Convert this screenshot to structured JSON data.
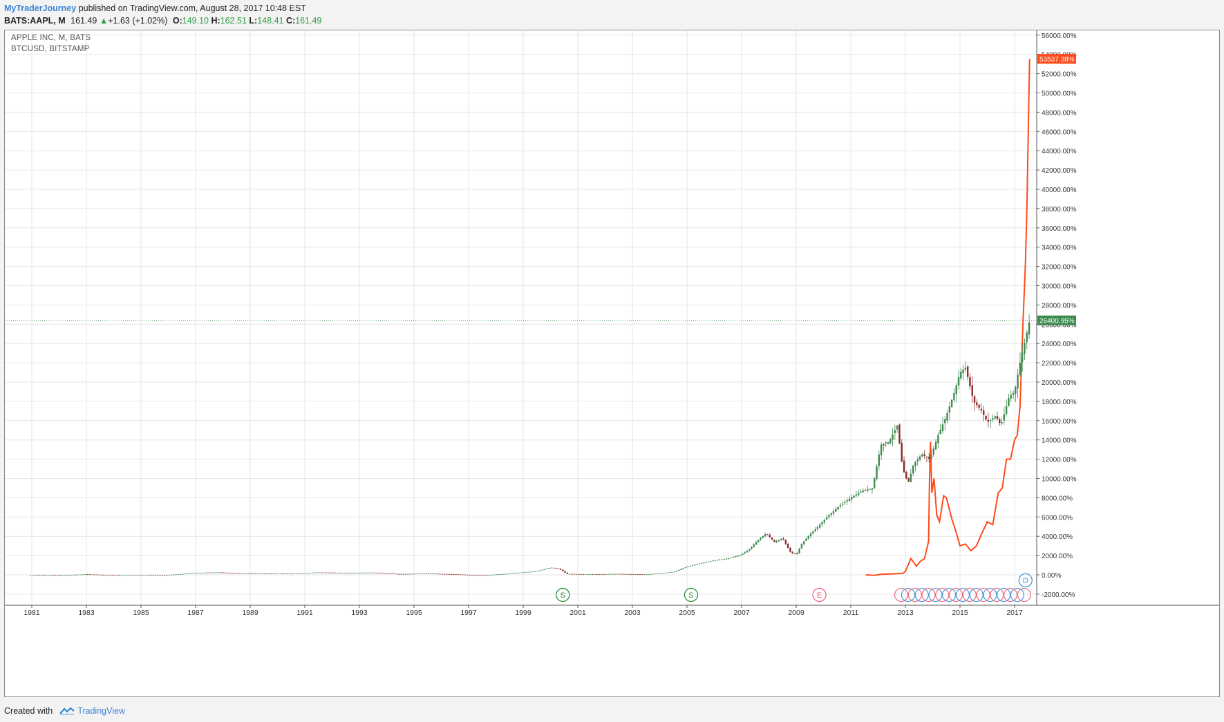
{
  "header": {
    "publisher": "MyTraderJourney",
    "published_text": "published on TradingView.com, August 28, 2017 10:48 EST",
    "symbol": "BATS:AAPL, M",
    "last": "161.49",
    "change": "+1.63 (+1.02%)",
    "o_label": "O:",
    "o_val": "149.10",
    "h_label": "H:",
    "h_val": "162.51",
    "l_label": "L:",
    "l_val": "148.41",
    "c_label": "C:",
    "c_val": "161.49"
  },
  "legend": {
    "series1": "APPLE INC, M, BATS",
    "series2": "BTCUSD, BITSTAMP"
  },
  "footer": {
    "created_with": "Created with",
    "brand": "TradingView"
  },
  "colors": {
    "up": "#3d8a4f",
    "down": "#8b2b2b",
    "btc": "#ff4a1a",
    "grid": "#e6e6e6",
    "dividend": "#3a8fd6",
    "split": "#1f8a2e",
    "earnings": "#ee5b75"
  },
  "chart_data": {
    "type": "line",
    "scale": "percent",
    "x_tick_labels": [
      "1981",
      "1983",
      "1985",
      "1987",
      "1989",
      "1991",
      "1993",
      "1995",
      "1997",
      "1999",
      "2001",
      "2003",
      "2005",
      "2007",
      "2009",
      "2011",
      "2013",
      "2015",
      "2017"
    ],
    "y_tick_labels": [
      "56000.00%",
      "54000.00%",
      "52000.00%",
      "50000.00%",
      "48000.00%",
      "46000.00%",
      "44000.00%",
      "42000.00%",
      "40000.00%",
      "38000.00%",
      "36000.00%",
      "34000.00%",
      "32000.00%",
      "30000.00%",
      "28000.00%",
      "26000.00%",
      "24000.00%",
      "22000.00%",
      "20000.00%",
      "18000.00%",
      "16000.00%",
      "14000.00%",
      "12000.00%",
      "10000.00%",
      "8000.00%",
      "6000.00%",
      "4000.00%",
      "2000.00%",
      "0.00%",
      "-2000.00%"
    ],
    "ylim": [
      -2000,
      56000
    ],
    "xlim": [
      1980.9,
      2017.65
    ],
    "last_values": [
      {
        "label": "53537.38%",
        "value": 53537.38,
        "color": "#ff4a1a"
      },
      {
        "label": "26400.95%",
        "value": 26400.95,
        "color": "#3d8a4f"
      }
    ],
    "series": [
      {
        "name": "APPLE INC, M, BATS",
        "style": "candles",
        "color": "#3d8a4f",
        "x": [
          1980.95,
          1982.0,
          1983.0,
          1984.0,
          1985.0,
          1986.0,
          1987.0,
          1987.8,
          1988.5,
          1989.5,
          1990.5,
          1991.5,
          1992.5,
          1993.5,
          1994.5,
          1995.5,
          1996.5,
          1997.5,
          1998.5,
          1999.5,
          2000.0,
          2000.3,
          2000.6,
          2000.9,
          2001.5,
          2002.5,
          2003.5,
          2004.5,
          2005.0,
          2005.5,
          2006.0,
          2006.5,
          2007.0,
          2007.3,
          2007.6,
          2007.9,
          2008.2,
          2008.5,
          2008.8,
          2009.0,
          2009.2,
          2009.5,
          2009.8,
          2010.2,
          2010.6,
          2011.0,
          2011.4,
          2011.8,
          2012.1,
          2012.4,
          2012.7,
          2012.9,
          2013.1,
          2013.3,
          2013.6,
          2013.9,
          2014.2,
          2014.5,
          2014.8,
          2015.0,
          2015.2,
          2015.5,
          2015.8,
          2016.0,
          2016.3,
          2016.5,
          2016.8,
          2017.0,
          2017.2,
          2017.4,
          2017.55
        ],
        "y": [
          0,
          -50,
          50,
          -30,
          0,
          -20,
          200,
          250,
          180,
          150,
          120,
          250,
          200,
          230,
          80,
          150,
          50,
          -60,
          130,
          380,
          750,
          650,
          100,
          80,
          60,
          100,
          40,
          300,
          850,
          1200,
          1500,
          1700,
          2100,
          2700,
          3600,
          4300,
          3400,
          3800,
          2300,
          2100,
          3200,
          4200,
          5000,
          6200,
          7200,
          8000,
          8700,
          9000,
          13500,
          13800,
          15500,
          11000,
          9500,
          11500,
          12500,
          12000,
          14500,
          16500,
          19000,
          21000,
          21500,
          18000,
          17000,
          15800,
          16500,
          15500,
          18500,
          19000,
          22000,
          24500,
          26400
        ]
      },
      {
        "name": "BTCUSD, BITSTAMP",
        "style": "line",
        "color": "#ff4a1a",
        "x": [
          2011.55,
          2011.85,
          2012.1,
          2012.5,
          2012.9,
          2013.0,
          2013.2,
          2013.4,
          2013.55,
          2013.7,
          2013.85,
          2013.88,
          2013.92,
          2013.97,
          2014.05,
          2014.15,
          2014.25,
          2014.4,
          2014.5,
          2014.7,
          2014.85,
          2015.0,
          2015.2,
          2015.4,
          2015.6,
          2015.8,
          2016.0,
          2016.2,
          2016.4,
          2016.55,
          2016.7,
          2016.85,
          2017.0,
          2017.1,
          2017.2,
          2017.3,
          2017.4,
          2017.45,
          2017.5,
          2017.55
        ],
        "y": [
          0,
          -50,
          50,
          100,
          150,
          350,
          1700,
          900,
          1400,
          1700,
          3500,
          9500,
          13800,
          8500,
          10000,
          6200,
          5500,
          8200,
          8000,
          5800,
          4500,
          3000,
          3200,
          2500,
          3000,
          4300,
          5500,
          5200,
          8500,
          9000,
          12000,
          12000,
          14000,
          14500,
          17500,
          25500,
          32500,
          38000,
          46000,
          53537
        ]
      }
    ],
    "event_markers": [
      {
        "type": "split",
        "label": "S",
        "x": 2000.45
      },
      {
        "type": "split",
        "label": "S",
        "x": 2005.15
      },
      {
        "type": "earnings",
        "label": "E",
        "x": 2009.85
      },
      {
        "type": "dividend",
        "label": "D",
        "x": 2017.4
      }
    ],
    "grid": true
  }
}
